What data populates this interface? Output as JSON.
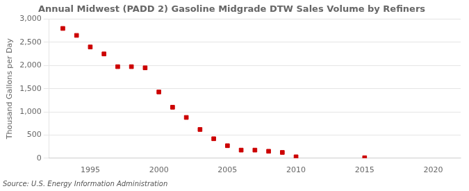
{
  "chart_data": {
    "type": "scatter",
    "title": "Annual Midwest (PADD 2) Gasoline Midgrade DTW Sales Volume by Refiners",
    "ylabel": "Thousand Gallons per Day",
    "annotation": "Source: U.S. Energy Information Administration",
    "x": [
      1993,
      1994,
      1995,
      1996,
      1997,
      1998,
      1999,
      2000,
      2001,
      2002,
      2003,
      2004,
      2005,
      2006,
      2007,
      2008,
      2009,
      2010,
      2015
    ],
    "values": [
      2800,
      2650,
      2400,
      2250,
      1975,
      1975,
      1950,
      1430,
      1100,
      880,
      620,
      420,
      270,
      175,
      175,
      150,
      125,
      30,
      10
    ],
    "color": "#cc0000",
    "marker": "square",
    "xlim": [
      1992,
      2022
    ],
    "xticks": [
      1995,
      2000,
      2005,
      2010,
      2015,
      2020
    ],
    "ylim": [
      0,
      3000
    ],
    "yticks": [
      0,
      500,
      {
        "value": 1000,
        "label": "1,000"
      },
      {
        "value": 1500,
        "label": "1,500"
      },
      {
        "value": 2000,
        "label": "2,000"
      },
      {
        "value": 2500,
        "label": "2,500"
      },
      {
        "value": 3000,
        "label": "3,000"
      }
    ],
    "grid": "y"
  }
}
